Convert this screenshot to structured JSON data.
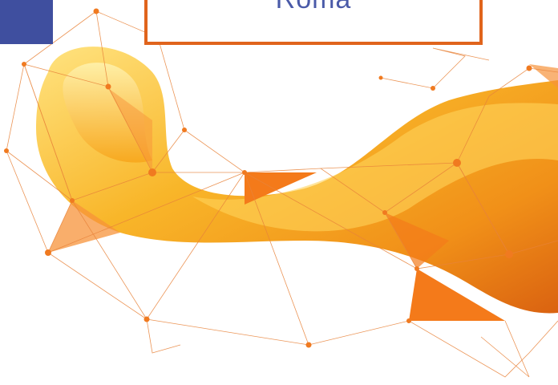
{
  "header": {
    "title": "Roma"
  }
}
